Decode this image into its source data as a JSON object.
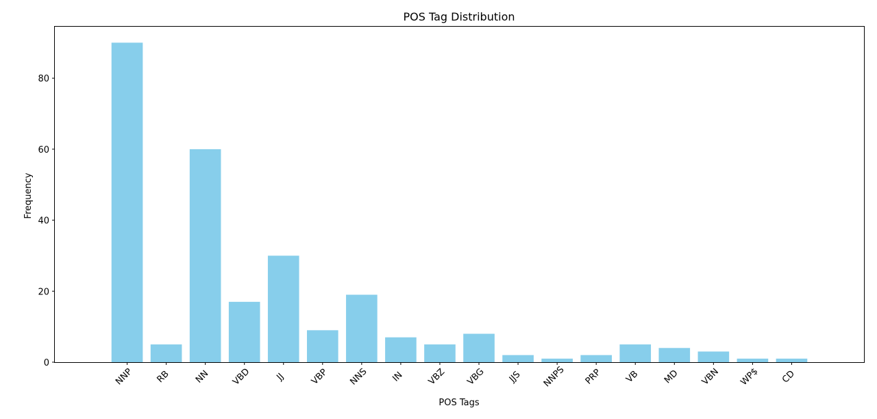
{
  "chart_data": {
    "type": "bar",
    "title": "POS Tag Distribution",
    "xlabel": "POS Tags",
    "ylabel": "Frequency",
    "categories": [
      "NNP",
      "RB",
      "NN",
      "VBD",
      "JJ",
      "VBP",
      "NNS",
      "IN",
      "VBZ",
      "VBG",
      "JJS",
      "NNPS",
      "PRP",
      "VB",
      "MD",
      "VBN",
      "WP$",
      "CD"
    ],
    "values": [
      90,
      5,
      60,
      17,
      30,
      9,
      19,
      7,
      5,
      8,
      2,
      1,
      2,
      5,
      4,
      3,
      1,
      1
    ],
    "ylim": [
      0,
      94.5
    ],
    "yticks": [
      0,
      20,
      40,
      60,
      80
    ],
    "bar_color": "#87ceeb",
    "grid": false,
    "xtick_rotation": 45
  }
}
